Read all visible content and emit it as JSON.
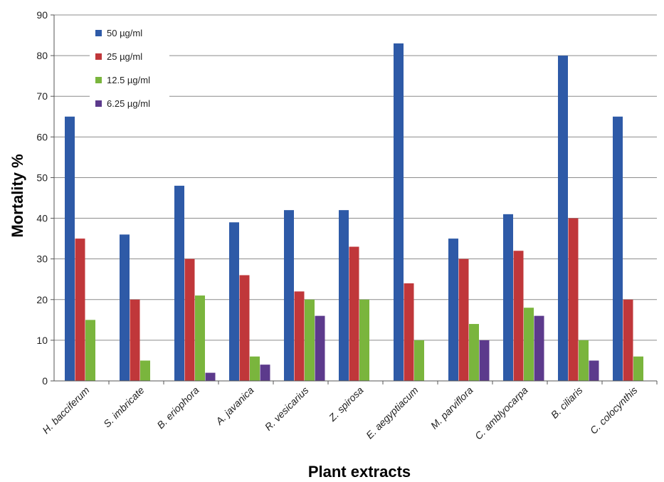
{
  "chart_data": {
    "type": "bar",
    "title": "",
    "xlabel": "Plant extracts",
    "ylabel": "Mortality %",
    "ylim": [
      0,
      90
    ],
    "yticks": [
      0,
      10,
      20,
      30,
      40,
      50,
      60,
      70,
      80,
      90
    ],
    "grid": true,
    "legend_position": "top-left",
    "categories": [
      "H. bacciferum",
      "S. imbricate",
      "B. eriophora",
      "A. javanica",
      "R. vesicarius",
      "Z. spirosa",
      "E. aegyptiacum",
      "M. parviflora",
      "C. amblyocarpa",
      "B. ciliaris",
      "C. colocynthis"
    ],
    "series": [
      {
        "name": "50  µg/ml",
        "color": "#2e5aa7",
        "values": [
          65,
          36,
          48,
          39,
          42,
          42,
          83,
          35,
          41,
          80,
          65
        ]
      },
      {
        "name": "25  µg/ml",
        "color": "#c0373a",
        "values": [
          35,
          20,
          30,
          26,
          22,
          33,
          24,
          30,
          32,
          40,
          20
        ]
      },
      {
        "name": "12.5  µg/ml",
        "color": "#7ab53d",
        "values": [
          15,
          5,
          21,
          6,
          20,
          20,
          10,
          14,
          18,
          10,
          6
        ]
      },
      {
        "name": "6.25  µg/ml",
        "color": "#5c3a8c",
        "values": [
          0,
          0,
          2,
          4,
          16,
          0,
          0,
          10,
          16,
          5,
          0
        ]
      }
    ]
  }
}
